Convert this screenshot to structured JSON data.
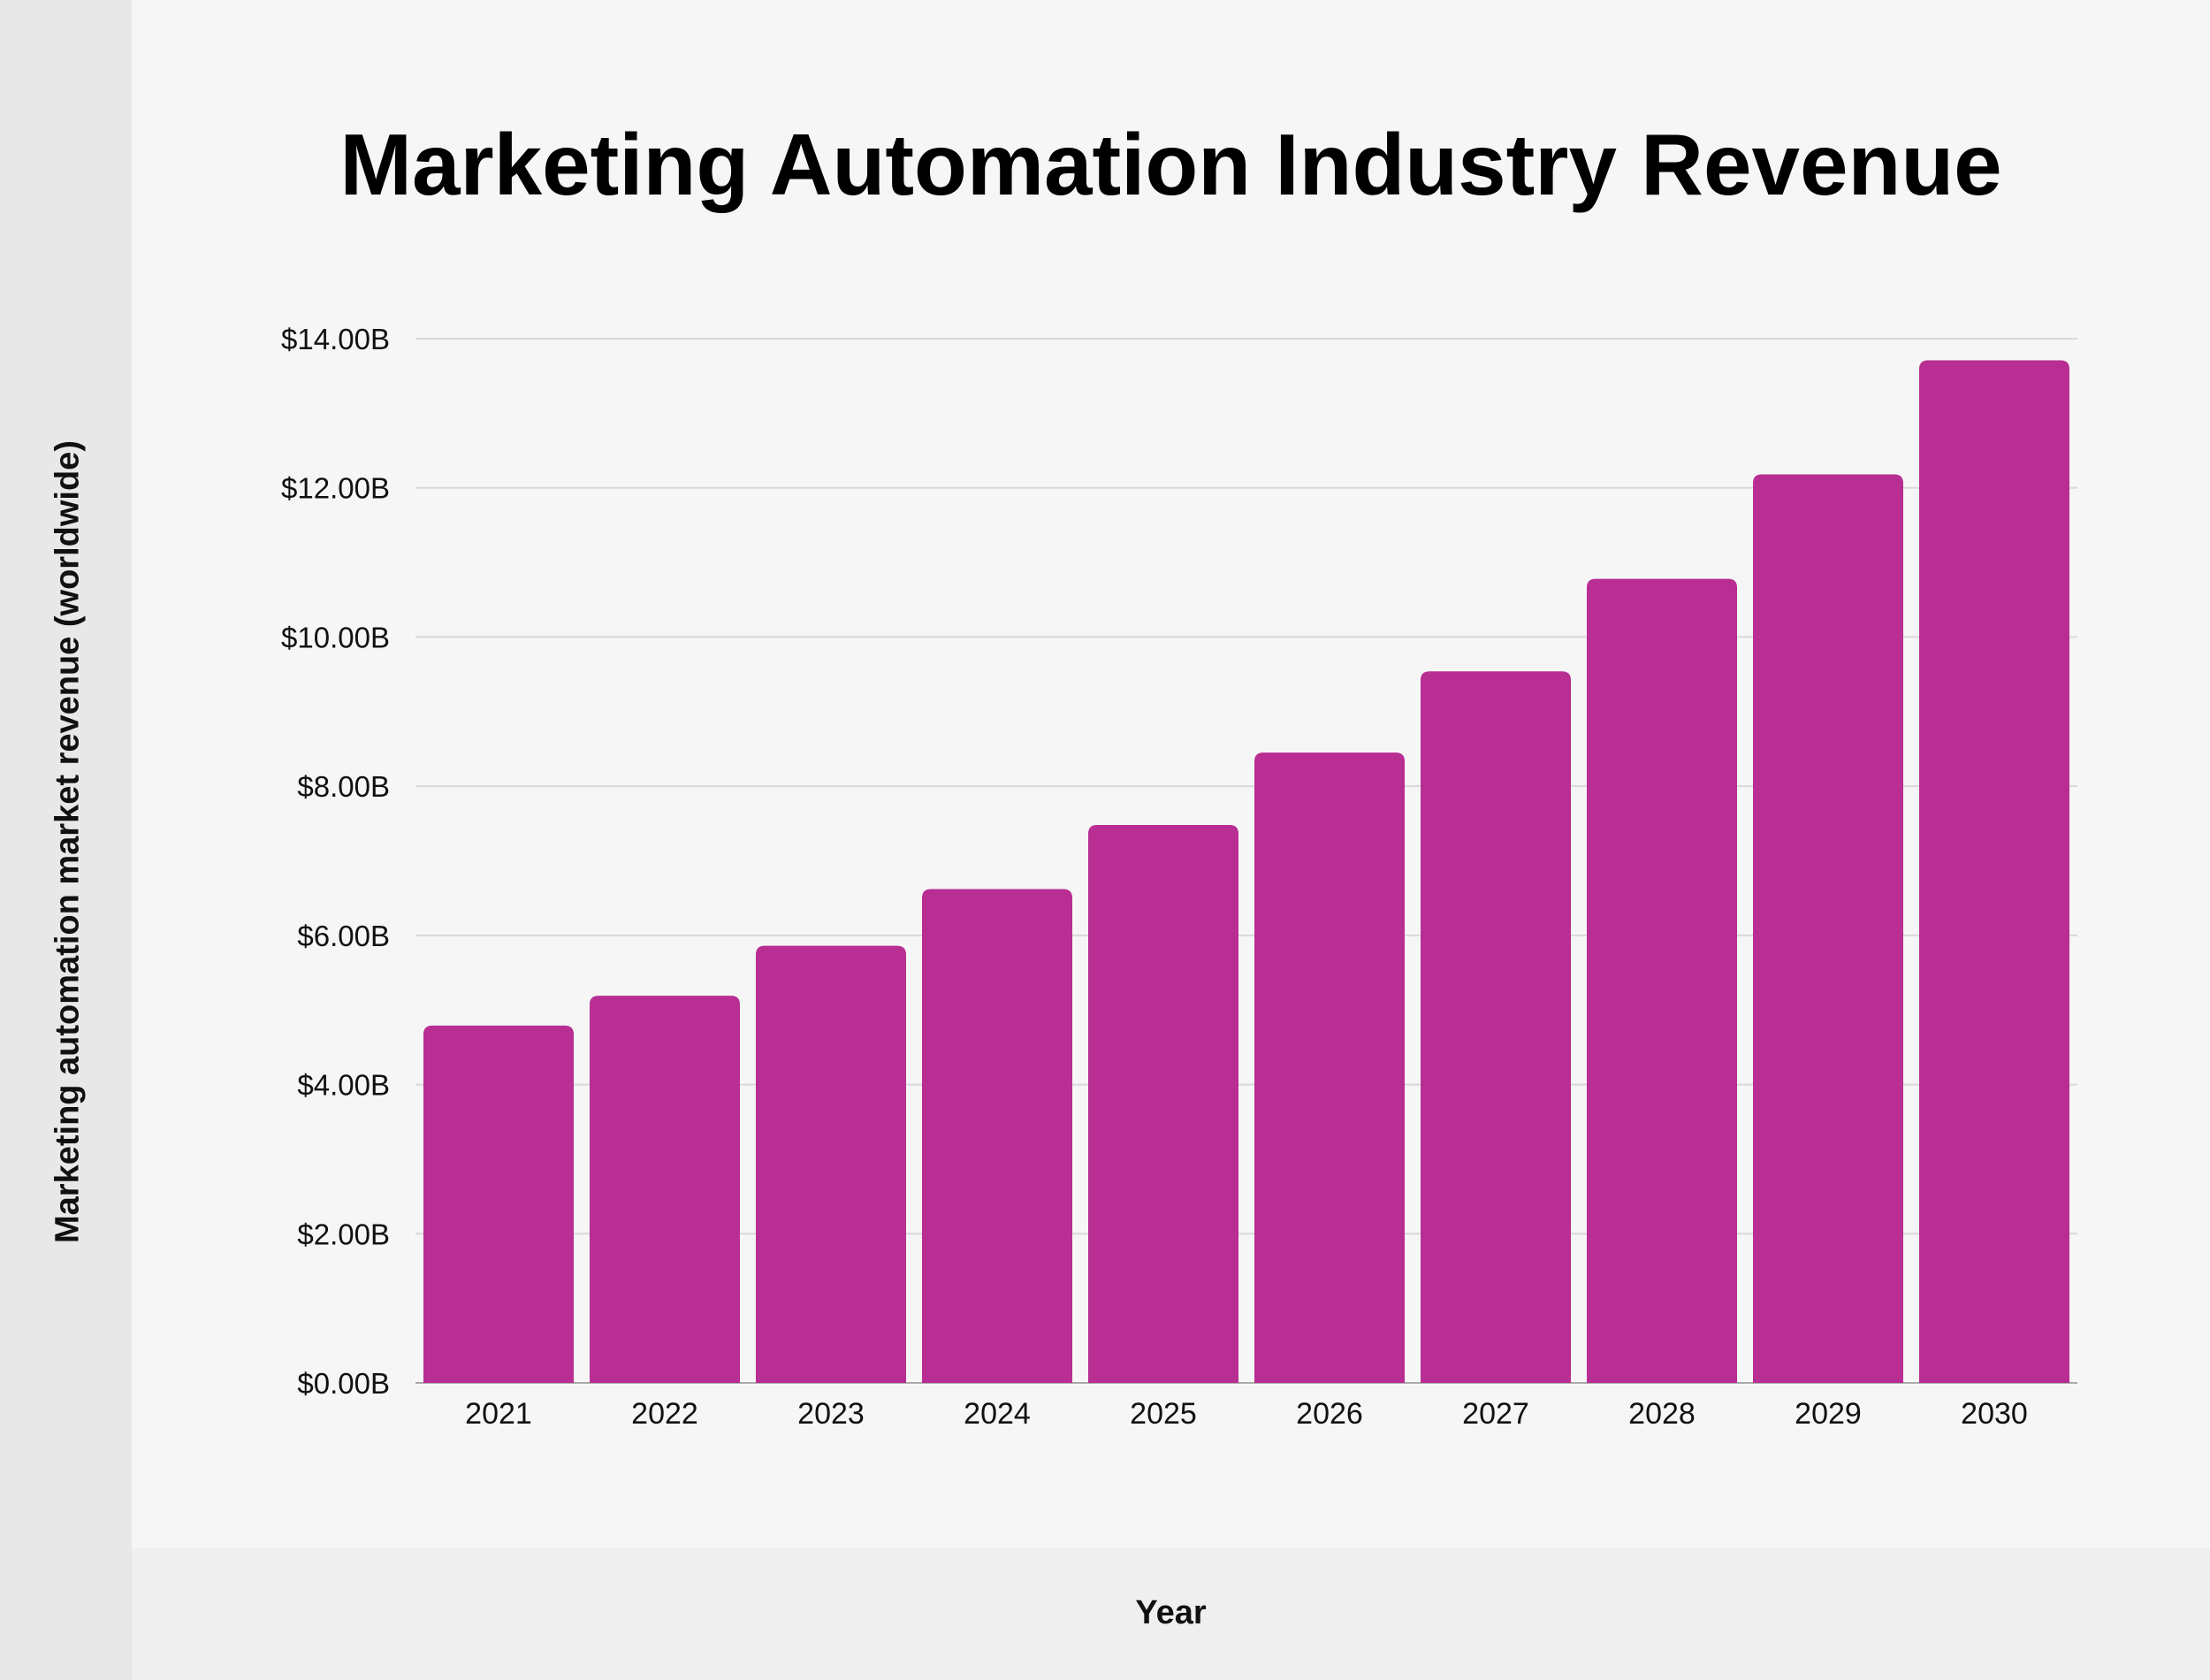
{
  "chart_data": {
    "type": "bar",
    "title": "Marketing Automation Industry Revenue",
    "xlabel": "Year",
    "ylabel": "Marketing automation market revenue (worldwide)",
    "categories": [
      "2021",
      "2022",
      "2023",
      "2024",
      "2025",
      "2026",
      "2027",
      "2028",
      "2029",
      "2030"
    ],
    "values": [
      4.79,
      5.19,
      5.86,
      6.62,
      7.48,
      8.45,
      9.54,
      10.78,
      12.18,
      13.71
    ],
    "unit": "billion USD",
    "ylim": [
      0,
      14
    ],
    "yticks": [
      0,
      2,
      4,
      6,
      8,
      10,
      12,
      14
    ],
    "ytick_labels": [
      "$0.00B",
      "$2.00B",
      "$4.00B",
      "$6.00B",
      "$8.00B",
      "$10.00B",
      "$12.00B",
      "$14.00B"
    ],
    "grid": true,
    "legend": "none",
    "bar_color": "#b82e92"
  }
}
